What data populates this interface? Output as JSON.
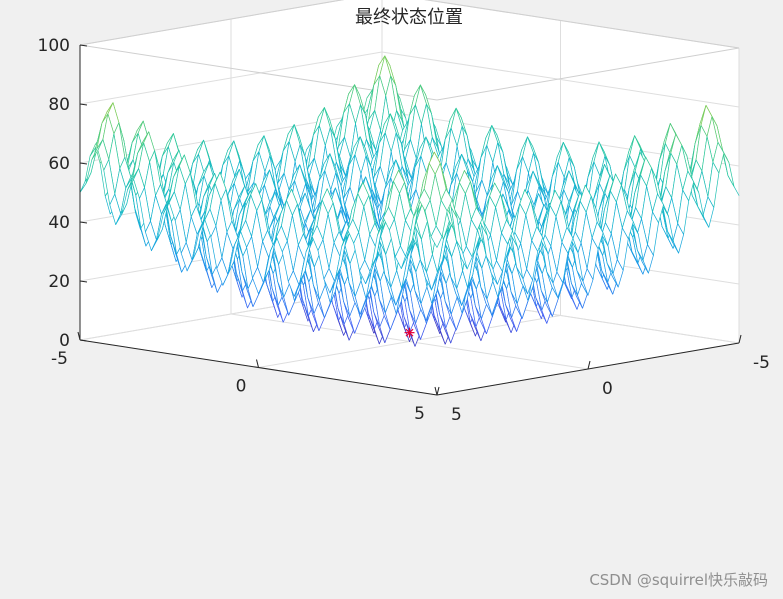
{
  "chart_data": {
    "type": "surface",
    "style": "mesh",
    "title": "最终状态位置",
    "function": "20 + x^2 + y^2 - 10*(cos(2*pi*x) + cos(2*pi*y))",
    "x": {
      "range": [
        -5,
        5
      ],
      "ticks": [
        "-5",
        "0",
        "5"
      ]
    },
    "y": {
      "range": [
        -5,
        5
      ],
      "ticks": [
        "-5",
        "0",
        "5"
      ]
    },
    "z": {
      "range": [
        0,
        100
      ],
      "ticks": [
        "0",
        "20",
        "40",
        "60",
        "80",
        "100"
      ]
    },
    "grid": true,
    "colormap": "parula",
    "marker": {
      "symbol": "*",
      "color": "#e3003a",
      "x": 0,
      "y": 0,
      "z": 0
    }
  },
  "watermark": "CSDN @squirrel快乐敲码"
}
